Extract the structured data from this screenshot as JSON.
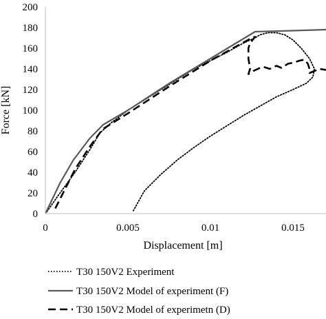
{
  "chart_data": {
    "type": "line",
    "xlabel": "Displacement [m]",
    "ylabel": "Force [kN]",
    "xlim": [
      0,
      0.017
    ],
    "ylim": [
      0,
      200
    ],
    "grid": false,
    "legend_position": "bottom",
    "x_ticks": [
      {
        "value": 0,
        "label": "0"
      },
      {
        "value": 0.005,
        "label": "0.005"
      },
      {
        "value": 0.01,
        "label": "0.01"
      },
      {
        "value": 0.015,
        "label": "0.015"
      }
    ],
    "y_ticks": [
      {
        "value": 0,
        "label": "0"
      },
      {
        "value": 20,
        "label": "20"
      },
      {
        "value": 40,
        "label": "40"
      },
      {
        "value": 60,
        "label": "60"
      },
      {
        "value": 80,
        "label": "80"
      },
      {
        "value": 100,
        "label": "100"
      },
      {
        "value": 120,
        "label": "120"
      },
      {
        "value": 140,
        "label": "140"
      },
      {
        "value": 160,
        "label": "160"
      },
      {
        "value": 180,
        "label": "180"
      },
      {
        "value": 200,
        "label": "200"
      }
    ],
    "series": [
      {
        "name": "T30 150V2 Experiment",
        "style": "dotted",
        "color": "#000000",
        "points": [
          [
            0.0001,
            2
          ],
          [
            0.0008,
            18
          ],
          [
            0.0018,
            40
          ],
          [
            0.0027,
            62
          ],
          [
            0.0033,
            78
          ],
          [
            0.004,
            88
          ],
          [
            0.005,
            100
          ],
          [
            0.006,
            110
          ],
          [
            0.007,
            120
          ],
          [
            0.008,
            130
          ],
          [
            0.009,
            140
          ],
          [
            0.01,
            148
          ],
          [
            0.011,
            156
          ],
          [
            0.012,
            165
          ],
          [
            0.0127,
            170
          ],
          [
            0.013,
            173
          ],
          [
            0.0135,
            175
          ],
          [
            0.014,
            175
          ],
          [
            0.0145,
            173
          ],
          [
            0.015,
            168
          ],
          [
            0.0155,
            160
          ],
          [
            0.016,
            150
          ],
          [
            0.0163,
            140
          ],
          [
            0.0162,
            132
          ],
          [
            0.0158,
            126
          ],
          [
            0.015,
            120
          ],
          [
            0.014,
            113
          ],
          [
            0.013,
            104
          ],
          [
            0.012,
            95
          ],
          [
            0.011,
            85
          ],
          [
            0.01,
            75
          ],
          [
            0.009,
            64
          ],
          [
            0.008,
            52
          ],
          [
            0.007,
            38
          ],
          [
            0.006,
            22
          ],
          [
            0.0053,
            2
          ]
        ]
      },
      {
        "name": "T30 150V2 Model of experiment (F)",
        "style": "solid",
        "color": "#595959",
        "points": [
          [
            0,
            0
          ],
          [
            0.0009,
            30
          ],
          [
            0.0017,
            52
          ],
          [
            0.0027,
            73
          ],
          [
            0.0035,
            86
          ],
          [
            0.005,
            100
          ],
          [
            0.0075,
            126
          ],
          [
            0.01,
            150
          ],
          [
            0.0127,
            176
          ],
          [
            0.015,
            177
          ],
          [
            0.017,
            178
          ]
        ]
      },
      {
        "name": "T30 150V2 Model of experimetn (D)",
        "style": "dashed",
        "color": "#000000",
        "points": [
          [
            0.0006,
            5
          ],
          [
            0.0018,
            43
          ],
          [
            0.0027,
            65
          ],
          [
            0.0033,
            78
          ],
          [
            0.0035,
            82
          ],
          [
            0.005,
            97
          ],
          [
            0.0075,
            123
          ],
          [
            0.01,
            148
          ],
          [
            0.0125,
            170
          ],
          [
            0.0127,
            171
          ],
          [
            0.0124,
            165
          ],
          [
            0.0123,
            160
          ],
          [
            0.0123,
            150
          ],
          [
            0.0124,
            140
          ],
          [
            0.0123,
            135
          ],
          [
            0.0126,
            138
          ],
          [
            0.013,
            141
          ],
          [
            0.0132,
            142
          ],
          [
            0.0136,
            140
          ],
          [
            0.014,
            143
          ],
          [
            0.0143,
            141
          ],
          [
            0.0147,
            145
          ],
          [
            0.015,
            146
          ],
          [
            0.0154,
            148
          ],
          [
            0.0157,
            149
          ],
          [
            0.0159,
            145
          ],
          [
            0.016,
            140
          ],
          [
            0.016,
            136
          ],
          [
            0.0163,
            138
          ],
          [
            0.0166,
            140
          ],
          [
            0.017,
            139
          ]
        ]
      }
    ]
  }
}
